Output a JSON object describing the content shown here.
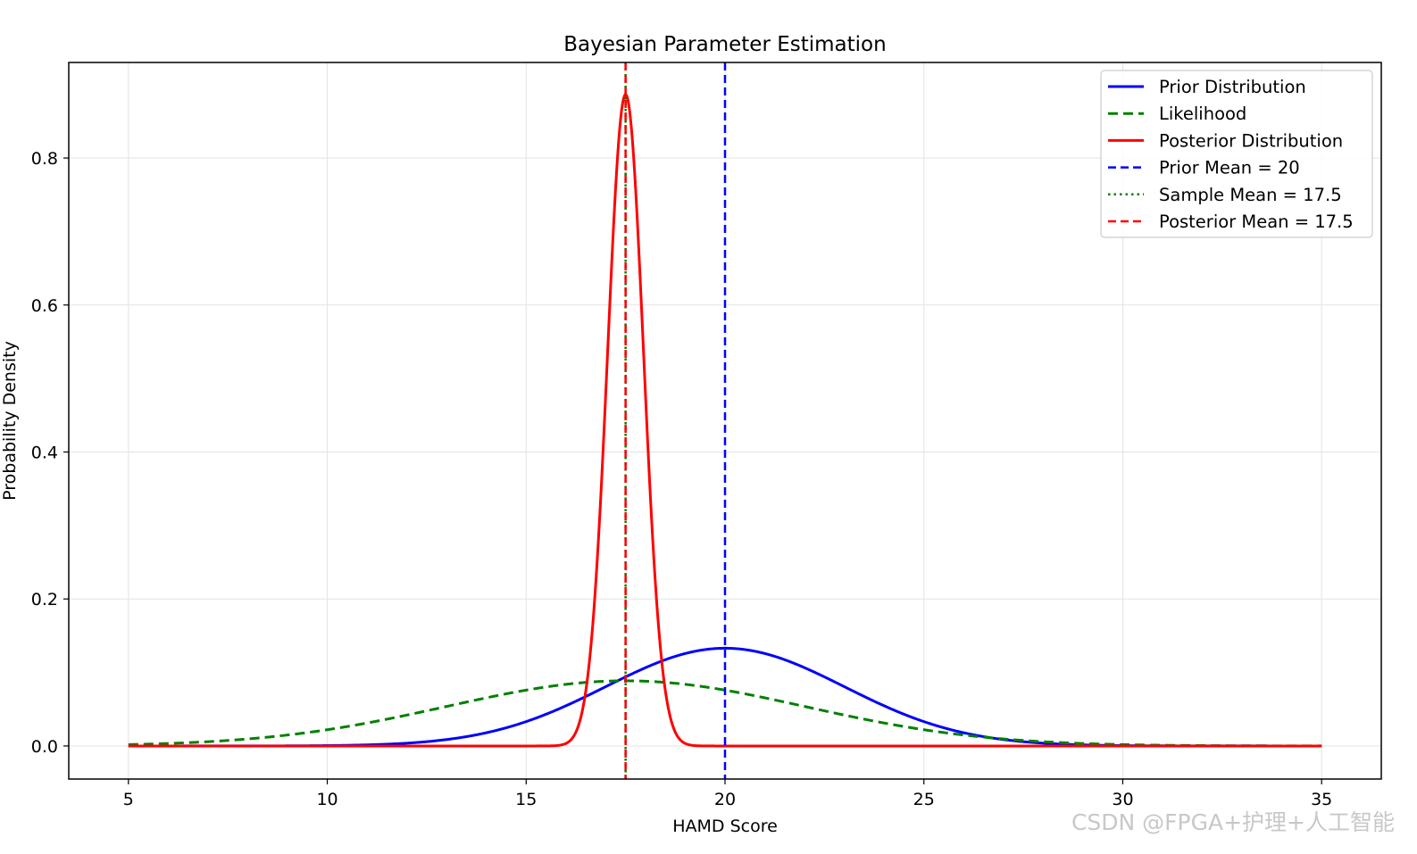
{
  "chart_data": {
    "type": "line",
    "title": "Bayesian Parameter Estimation",
    "xlabel": "HAMD Score",
    "ylabel": "Probability Density",
    "xlim": [
      3.5,
      36.5
    ],
    "ylim": [
      -0.045,
      0.93
    ],
    "xticks": [
      5,
      10,
      15,
      20,
      25,
      30,
      35
    ],
    "yticks": [
      0.0,
      0.2,
      0.4,
      0.6,
      0.8
    ],
    "ytick_labels": [
      "0.0",
      "0.2",
      "0.4",
      "0.6",
      "0.8"
    ],
    "grid": true,
    "legend_position": "top-right",
    "series": [
      {
        "name": "Prior Distribution",
        "style": "solid",
        "color": "#0000ff",
        "distribution": "normal",
        "mean": 20,
        "sd": 3,
        "x_range": [
          5,
          35
        ]
      },
      {
        "name": "Likelihood",
        "style": "dashed",
        "color": "#008000",
        "distribution": "normal",
        "mean": 17.5,
        "sd": 4.5,
        "x_range": [
          5,
          35
        ]
      },
      {
        "name": "Posterior Distribution",
        "style": "solid",
        "color": "#ff0000",
        "distribution": "normal",
        "mean": 17.5,
        "sd": 0.45,
        "x_range": [
          5,
          35
        ]
      }
    ],
    "vlines": [
      {
        "name": "Prior Mean = 20",
        "x": 20,
        "style": "dashed",
        "color": "#0000ff"
      },
      {
        "name": "Sample Mean = 17.5",
        "x": 17.5,
        "style": "dotted",
        "color": "#008000"
      },
      {
        "name": "Posterior Mean = 17.5",
        "x": 17.5,
        "style": "dashed",
        "color": "#ff0000"
      }
    ]
  },
  "watermark": "CSDN @FPGA+护理+人工智能"
}
